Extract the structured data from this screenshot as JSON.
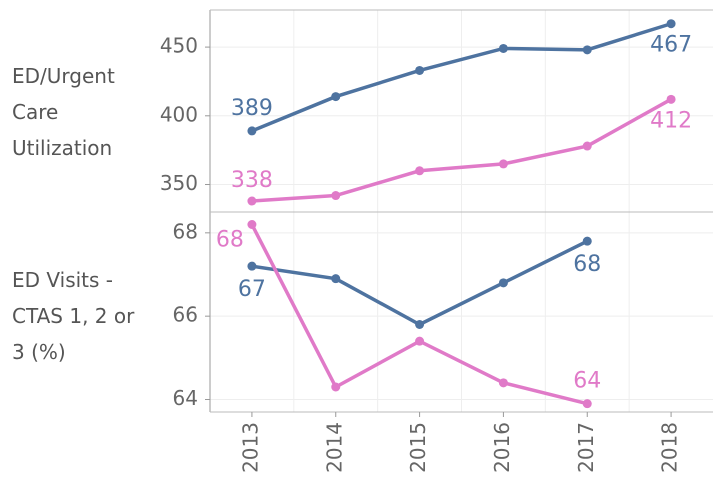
{
  "chart_data": {
    "type": "line",
    "categories": [
      "2013",
      "2014",
      "2015",
      "2016",
      "2017",
      "2018"
    ],
    "grid": true,
    "panels": [
      {
        "label": "ED/Urgent Care Utilization",
        "ylim": [
          330,
          477
        ],
        "yticks": [
          350,
          400,
          450
        ],
        "series": [
          {
            "name": "Blue",
            "color": "#4e73a0",
            "values": [
              389,
              414,
              433,
              449,
              448,
              467
            ],
            "value_labels": [
              "389",
              null,
              null,
              null,
              null,
              "467"
            ]
          },
          {
            "name": "Pink",
            "color": "#e07ac8",
            "values": [
              338,
              342,
              360,
              365,
              378,
              412
            ],
            "value_labels": [
              "338",
              null,
              null,
              null,
              null,
              "412"
            ]
          }
        ]
      },
      {
        "label": "ED Visits - CTAS 1, 2 or 3 (%)",
        "ylim": [
          63.7,
          68.5
        ],
        "yticks": [
          64,
          66,
          68
        ],
        "series": [
          {
            "name": "Blue",
            "color": "#4e73a0",
            "values": [
              67.2,
              66.9,
              65.8,
              66.8,
              67.8,
              null
            ],
            "value_labels": [
              "67",
              null,
              null,
              null,
              "68",
              null
            ]
          },
          {
            "name": "Pink",
            "color": "#e07ac8",
            "values": [
              68.2,
              64.3,
              65.4,
              64.4,
              63.9,
              null
            ],
            "value_labels": [
              "68",
              null,
              null,
              null,
              "64",
              null
            ]
          }
        ]
      }
    ]
  }
}
